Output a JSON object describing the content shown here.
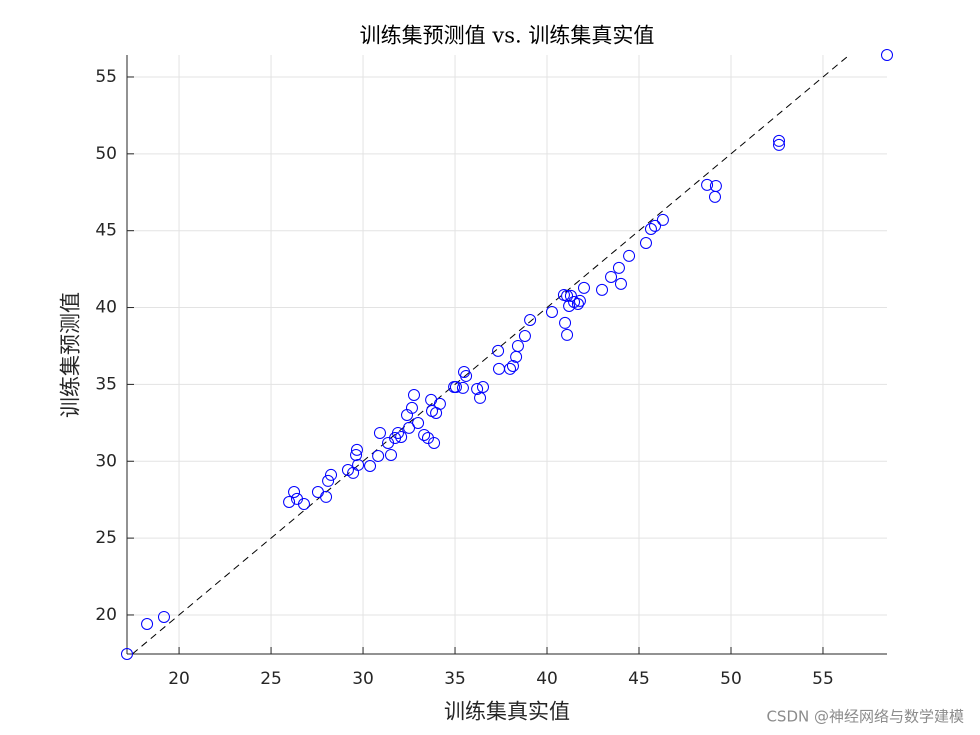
{
  "chart_data": {
    "type": "scatter",
    "title": "训练集预测值 vs. 训练集真实值",
    "x_label": "训练集真实值",
    "y_label": "训练集预测值",
    "x": [
      17.17,
      18.26,
      19.18,
      25.98,
      26.25,
      26.41,
      26.79,
      27.55,
      27.99,
      28.1,
      28.26,
      29.18,
      29.46,
      29.62,
      29.67,
      29.73,
      30.38,
      30.82,
      30.92,
      31.36,
      31.52,
      31.74,
      31.9,
      32.07,
      32.39,
      32.5,
      32.66,
      32.77,
      32.99,
      33.32,
      33.53,
      33.7,
      33.75,
      33.86,
      33.97,
      34.18,
      34.95,
      35.05,
      35.43,
      35.49,
      35.6,
      36.2,
      36.36,
      36.52,
      37.34,
      37.39,
      37.99,
      38.15,
      38.32,
      38.42,
      38.8,
      39.08,
      40.27,
      40.92,
      40.98,
      41.09,
      41.09,
      41.2,
      41.3,
      41.47,
      41.68,
      41.79,
      42.01,
      42.99,
      43.48,
      43.91,
      44.02,
      44.46,
      45.38,
      45.65,
      45.87,
      46.3,
      48.7,
      49.18,
      49.13,
      52.61,
      52.61,
      58.48
    ],
    "values": [
      17.46,
      19.41,
      19.87,
      27.35,
      28.0,
      27.55,
      27.22,
      28.0,
      27.68,
      28.72,
      29.11,
      29.43,
      29.24,
      30.41,
      30.74,
      29.76,
      29.69,
      30.34,
      31.84,
      31.19,
      30.41,
      31.51,
      31.84,
      31.58,
      33.01,
      32.17,
      33.47,
      34.31,
      32.49,
      31.71,
      31.51,
      33.99,
      33.27,
      31.19,
      33.14,
      33.73,
      34.83,
      34.83,
      34.77,
      35.81,
      35.55,
      34.7,
      34.12,
      34.83,
      37.18,
      36.01,
      36.01,
      36.2,
      36.79,
      37.5,
      38.15,
      39.19,
      39.71,
      40.82,
      39.0,
      38.22,
      40.76,
      40.1,
      40.76,
      40.36,
      40.23,
      40.43,
      41.28,
      41.15,
      41.99,
      42.58,
      41.54,
      43.36,
      44.2,
      45.11,
      45.31,
      45.7,
      47.98,
      47.91,
      47.2,
      50.84,
      50.58,
      56.43
    ],
    "color": "#0000ff",
    "xlim": [
      17.17,
      58.48
    ],
    "ylim": [
      17.46,
      56.43
    ],
    "xticks": [
      20,
      25,
      30,
      35,
      40,
      45,
      50,
      55
    ],
    "yticks": [
      20,
      25,
      30,
      35,
      40,
      45,
      50,
      55
    ],
    "grid": true,
    "diagonal": true
  },
  "watermark": "CSDN @神经网络与数学建模"
}
